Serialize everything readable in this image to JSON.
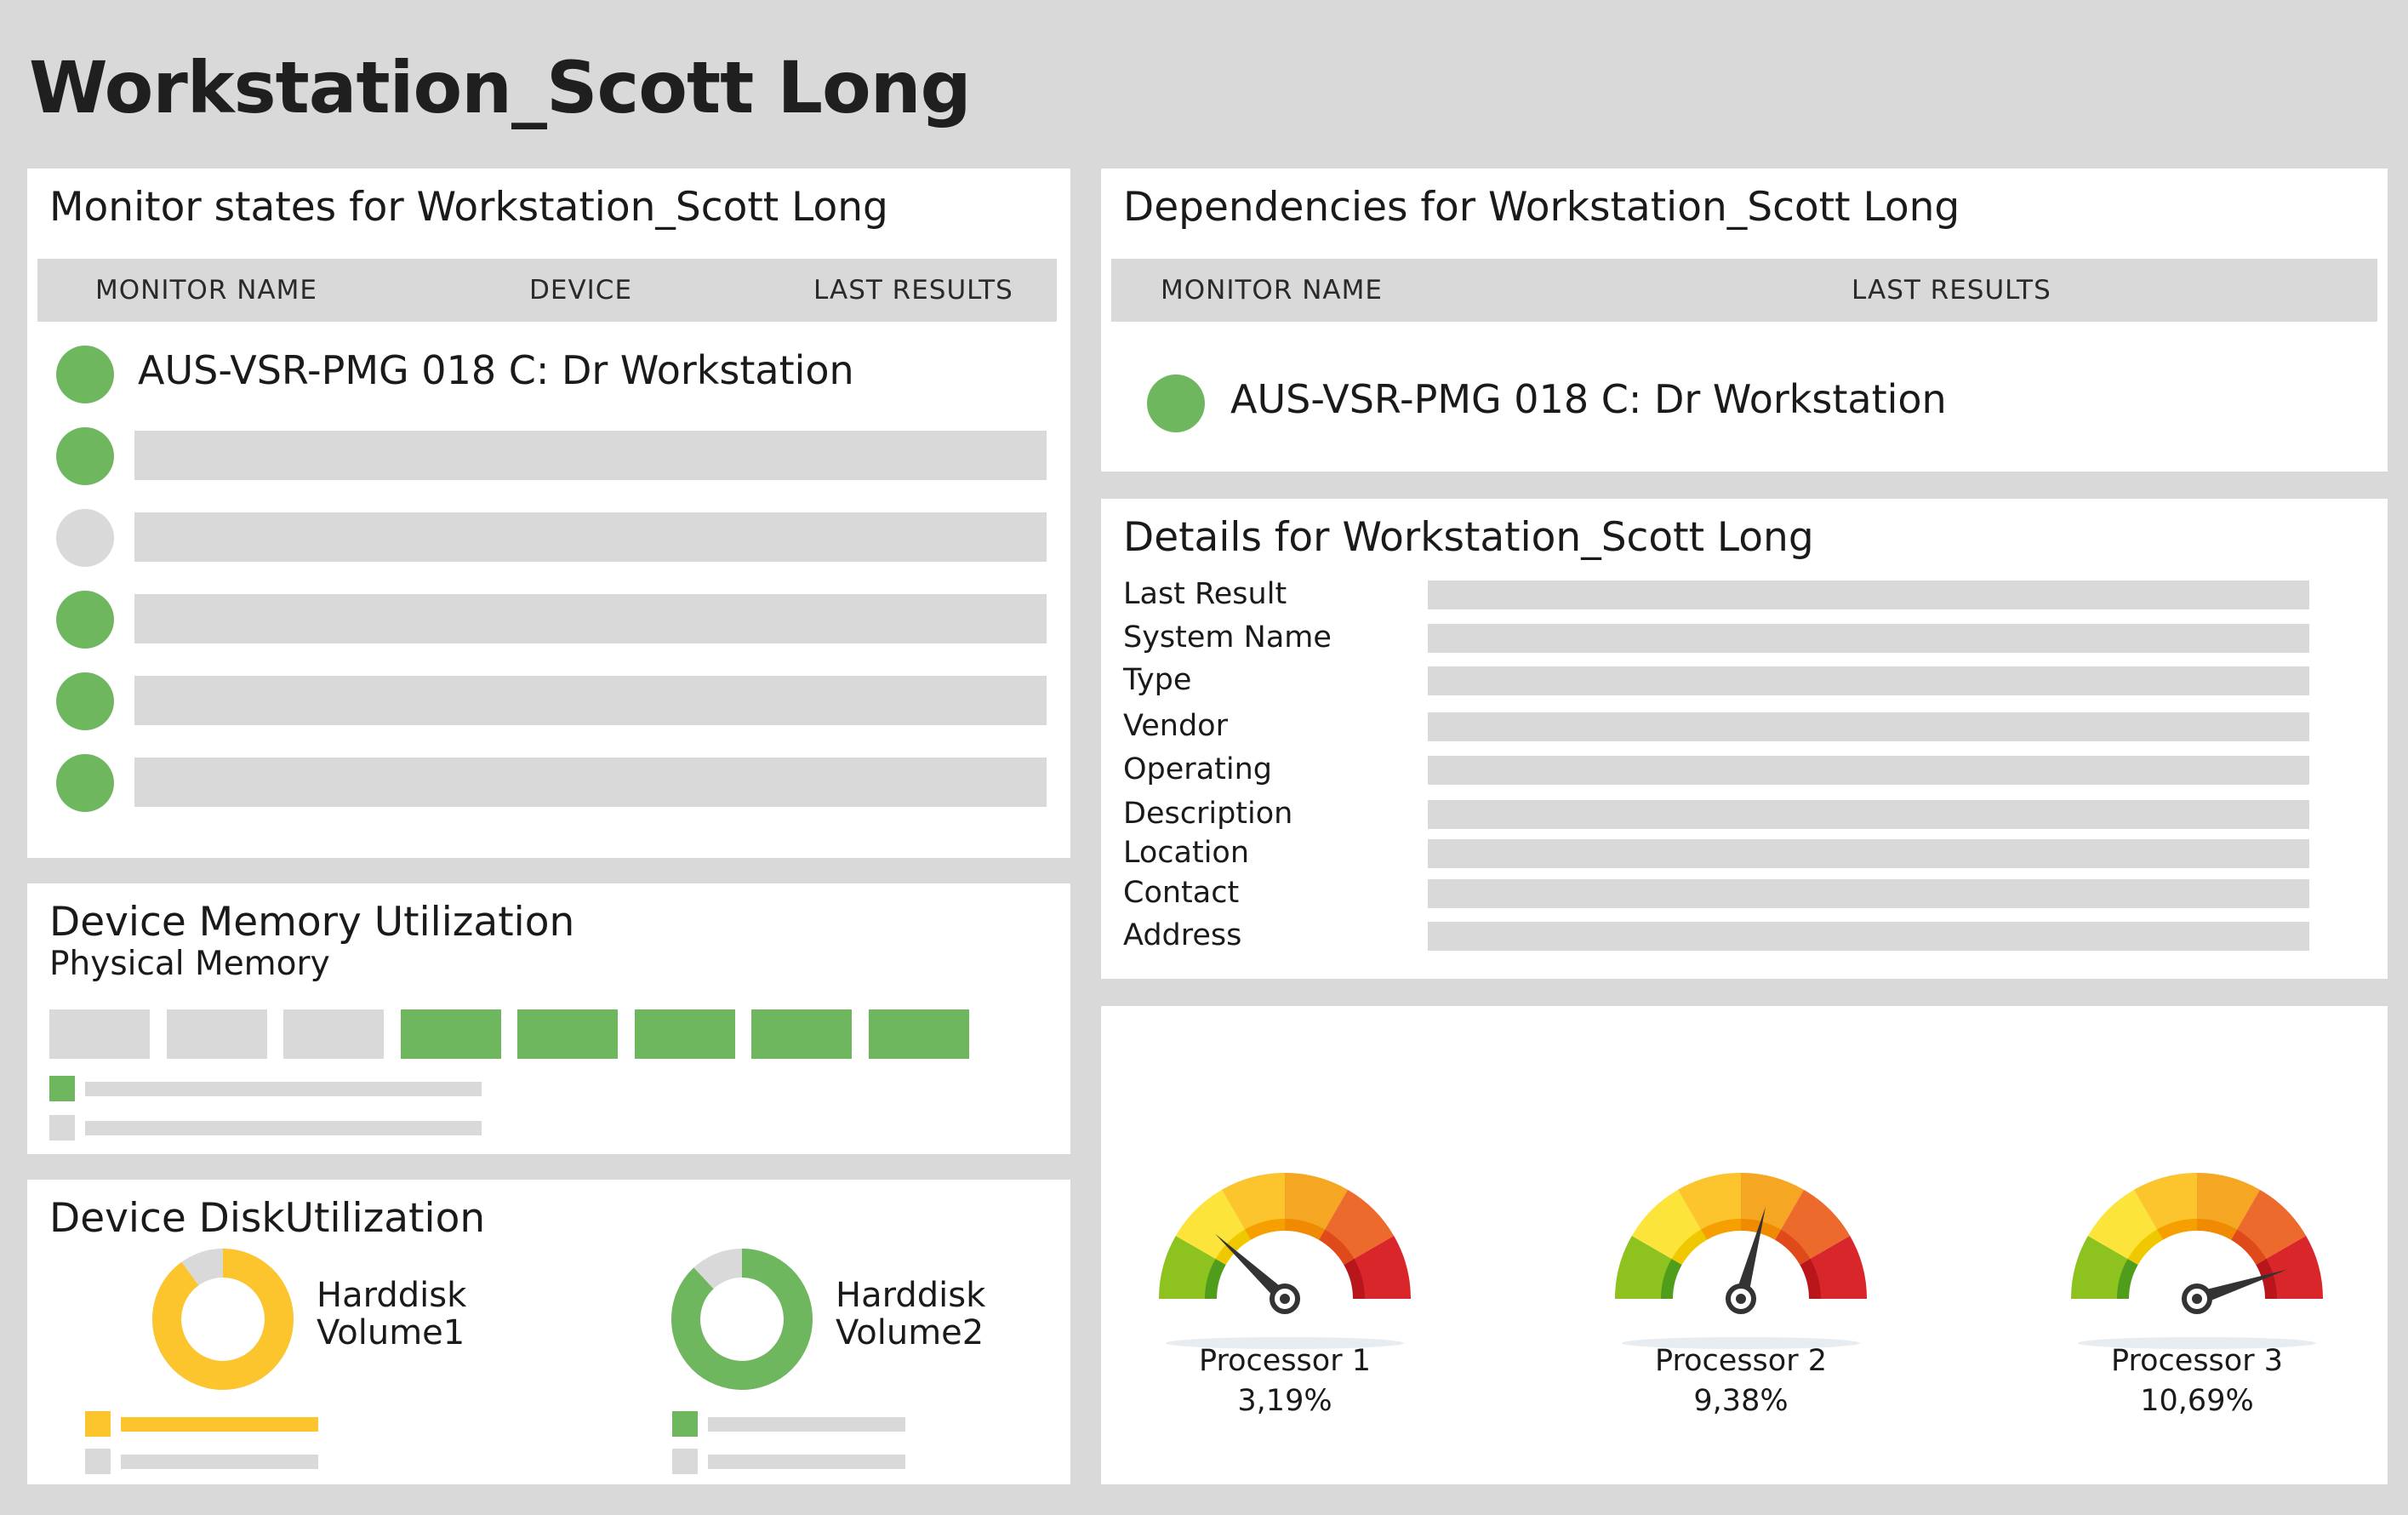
{
  "page": {
    "title": "Workstation_Scott Long"
  },
  "monitor_states": {
    "title": "Monitor states for Workstation_Scott Long",
    "columns": [
      "MONITOR NAME",
      "DEVICE",
      "LAST RESULTS"
    ],
    "rows": [
      {
        "status": "ok",
        "name": "AUS-VSR-PMG 018 C: Dr Workstation"
      },
      {
        "status": "ok"
      },
      {
        "status": "unknown"
      },
      {
        "status": "ok"
      },
      {
        "status": "ok"
      },
      {
        "status": "ok"
      }
    ]
  },
  "dependencies": {
    "title": "Dependencies for Workstation_Scott Long",
    "columns": [
      "MONITOR NAME",
      "LAST RESULTS"
    ],
    "rows": [
      {
        "status": "ok",
        "name": "AUS-VSR-PMG 018 C: Dr Workstation"
      }
    ]
  },
  "details": {
    "title": "Details for Workstation_Scott Long",
    "fields": [
      "Last Result",
      "System Name",
      "Type",
      "Vendor",
      "Operating",
      "Description",
      "Location",
      "Contact",
      "Address"
    ]
  },
  "memory": {
    "title": "Device Memory Utilization",
    "subtitle": "Physical Memory",
    "blocks_total": 8,
    "blocks_used": 5
  },
  "disk": {
    "title": "Device DiskUtilization",
    "volumes": [
      {
        "label_line1": "Harddisk",
        "label_line2": "Volume1",
        "color": "#fcc42d",
        "used_fraction": 0.9
      },
      {
        "label_line1": "Harddisk",
        "label_line2": "Volume2",
        "color": "#6fb75e",
        "used_fraction": 0.88
      }
    ]
  },
  "processors": [
    {
      "name": "Processor 1",
      "value": "3,19%",
      "needle_angle_deg": 137
    },
    {
      "name": "Processor 2",
      "value": "9,38%",
      "needle_angle_deg": 75
    },
    {
      "name": "Processor 3",
      "value": "10,69%",
      "needle_angle_deg": 18
    }
  ],
  "colors": {
    "ok": "#6fb75e",
    "unknown": "#d9d9d9",
    "bar": "#d9d9d9",
    "panel": "#ffffff",
    "background": "#d9d9d9"
  }
}
